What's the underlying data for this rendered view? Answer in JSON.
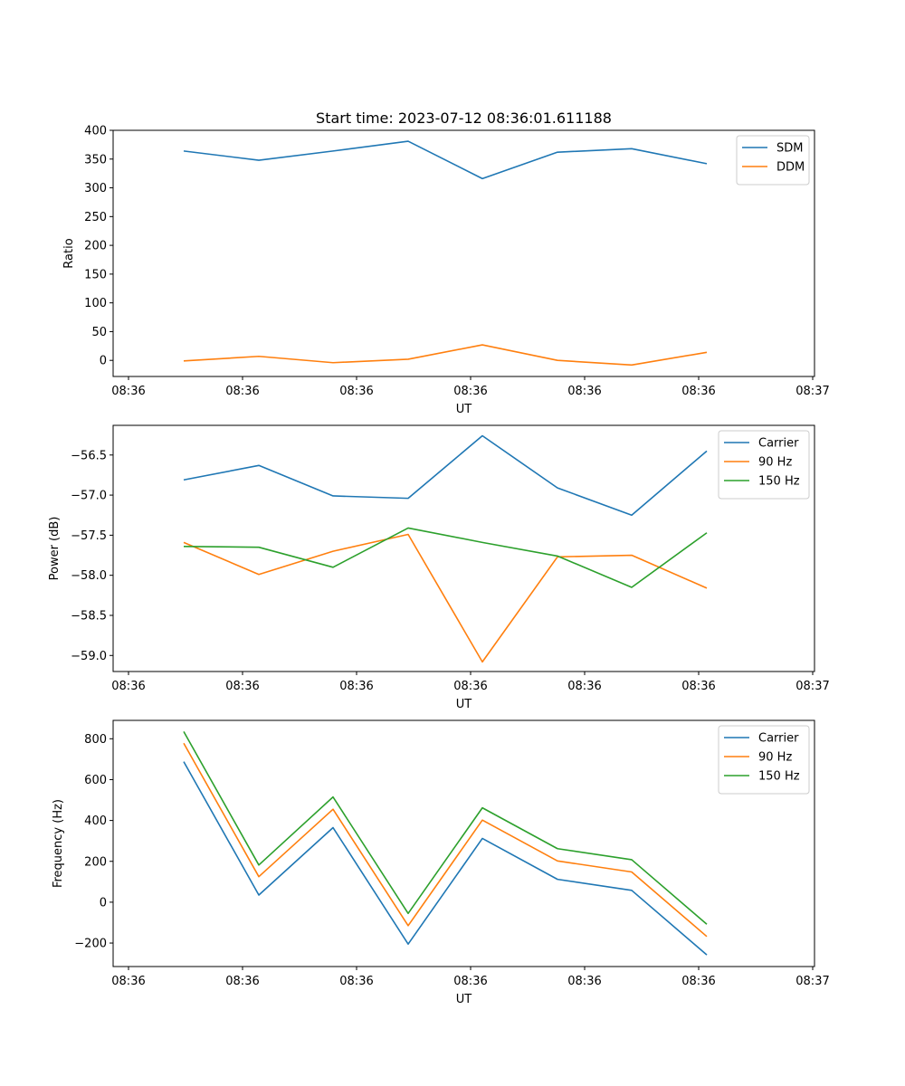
{
  "chart_data": [
    {
      "type": "line",
      "title": "Start time: 2023-07-12 08:36:01.611188",
      "xlabel": "UT",
      "ylabel": "Ratio",
      "x_tick_labels": [
        "08:36",
        "08:36",
        "08:36",
        "08:36",
        "08:36",
        "08:36",
        "08:36"
      ],
      "x_tick_labels_end": "08:37",
      "y_ticks": [
        "0",
        "50",
        "100",
        "150",
        "200",
        "250",
        "300",
        "350",
        "400"
      ],
      "ylim": [
        -28,
        400
      ],
      "legend": "top-right",
      "series": [
        {
          "name": "SDM",
          "color": "#1f77b4",
          "values": [
            364,
            348,
            364,
            381,
            316,
            362,
            368,
            342
          ]
        },
        {
          "name": "DDM",
          "color": "#ff7f0e",
          "values": [
            -1,
            7,
            -4,
            2,
            27,
            0,
            -8,
            14
          ]
        }
      ]
    },
    {
      "type": "line",
      "title": "",
      "xlabel": "UT",
      "ylabel": "Power (dB)",
      "x_tick_labels": [
        "08:36",
        "08:36",
        "08:36",
        "08:36",
        "08:36",
        "08:36",
        "08:36"
      ],
      "x_tick_labels_end": "08:37",
      "y_ticks": [
        "−59.0",
        "−58.5",
        "−58.0",
        "−57.5",
        "−57.0",
        "−56.5"
      ],
      "ylim": [
        -59.2,
        -56.13
      ],
      "legend": "top-right",
      "series": [
        {
          "name": "Carrier",
          "color": "#1f77b4",
          "values": [
            -56.81,
            -56.63,
            -57.01,
            -57.04,
            -56.26,
            -56.91,
            -57.25,
            -56.45
          ]
        },
        {
          "name": "90 Hz",
          "color": "#ff7f0e",
          "values": [
            -57.59,
            -57.99,
            -57.7,
            -57.49,
            -59.08,
            -57.77,
            -57.75,
            -58.16
          ]
        },
        {
          "name": "150 Hz",
          "color": "#2ca02c",
          "values": [
            -57.64,
            -57.65,
            -57.9,
            -57.41,
            -57.59,
            -57.76,
            -58.15,
            -57.47
          ]
        }
      ]
    },
    {
      "type": "line",
      "title": "",
      "xlabel": "UT",
      "ylabel": "Frequency (Hz)",
      "x_tick_labels": [
        "08:36",
        "08:36",
        "08:36",
        "08:36",
        "08:36",
        "08:36",
        "08:36"
      ],
      "x_tick_labels_end": "08:37",
      "y_ticks": [
        "−200",
        "0",
        "200",
        "400",
        "600",
        "800"
      ],
      "ylim": [
        -315,
        890
      ],
      "legend": "top-right",
      "series": [
        {
          "name": "Carrier",
          "color": "#1f77b4",
          "values": [
            688,
            35,
            365,
            -205,
            312,
            112,
            58,
            -258
          ]
        },
        {
          "name": "90 Hz",
          "color": "#ff7f0e",
          "values": [
            778,
            125,
            455,
            -115,
            402,
            202,
            148,
            -168
          ]
        },
        {
          "name": "150 Hz",
          "color": "#2ca02c",
          "values": [
            835,
            182,
            515,
            -55,
            462,
            262,
            208,
            -108
          ]
        }
      ]
    }
  ]
}
